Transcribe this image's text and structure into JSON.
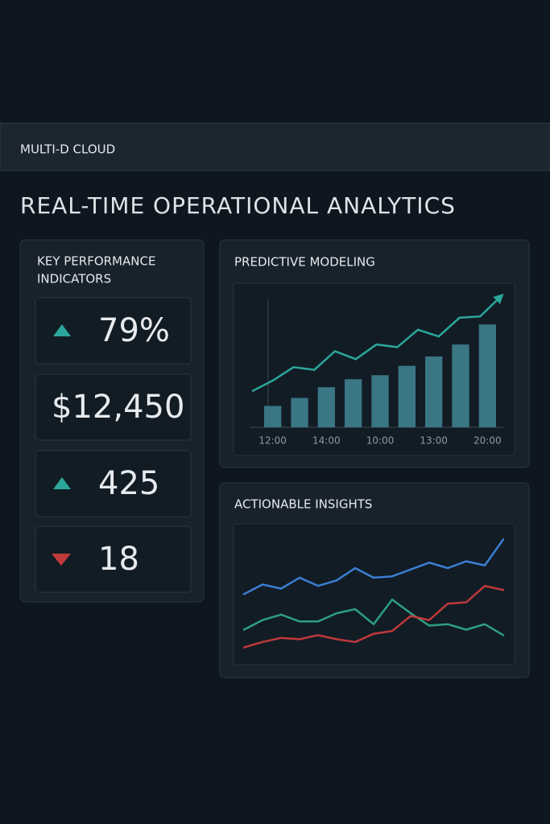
{
  "header": {
    "brand": "MULTI-D CLOUD"
  },
  "title": "REAL-TIME OPERATIONAL ANALYTICS",
  "kpi_panel": {
    "title_lines": [
      "KEY PERFORMANCE",
      "INDICATORS"
    ],
    "items": [
      {
        "value": "79%",
        "trend": "up"
      },
      {
        "value": "$12,450",
        "trend": null
      },
      {
        "value": 425,
        "trend": "up"
      },
      {
        "value": 18,
        "trend": "down"
      }
    ]
  },
  "chart_data": [
    {
      "type": "bar",
      "title": "PREDICTIVE MODELING",
      "categories": [
        "12:00",
        null,
        "14:00",
        null,
        "10:00",
        null,
        "13:00",
        null,
        "20:00"
      ],
      "values": [
        16,
        22,
        30,
        36,
        39,
        46,
        53,
        62,
        77
      ],
      "color": "#3a7684",
      "trend": {
        "color": "#2aa79a",
        "values": [
          27,
          35,
          45,
          43,
          57,
          51,
          62,
          60,
          73,
          68,
          82,
          83,
          98
        ]
      },
      "ylim": [
        0,
        100
      ]
    },
    {
      "type": "line",
      "title": "ACTIONABLE INSIGHTS",
      "series": [
        {
          "color": "#3b7fd4",
          "values": [
            51,
            58,
            55,
            63,
            57,
            61,
            70,
            63,
            64,
            69,
            74,
            70,
            75,
            72,
            91
          ]
        },
        {
          "color": "#2e9e85",
          "values": [
            25,
            32,
            36,
            31,
            31,
            37,
            40,
            29,
            47,
            37,
            28,
            29,
            25,
            29,
            21
          ]
        },
        {
          "color": "#c0393b",
          "values": [
            12,
            16,
            19,
            18,
            21,
            18,
            16,
            22,
            24,
            35,
            32,
            44,
            45,
            57,
            54
          ]
        }
      ],
      "ylim": [
        0,
        100
      ]
    }
  ]
}
